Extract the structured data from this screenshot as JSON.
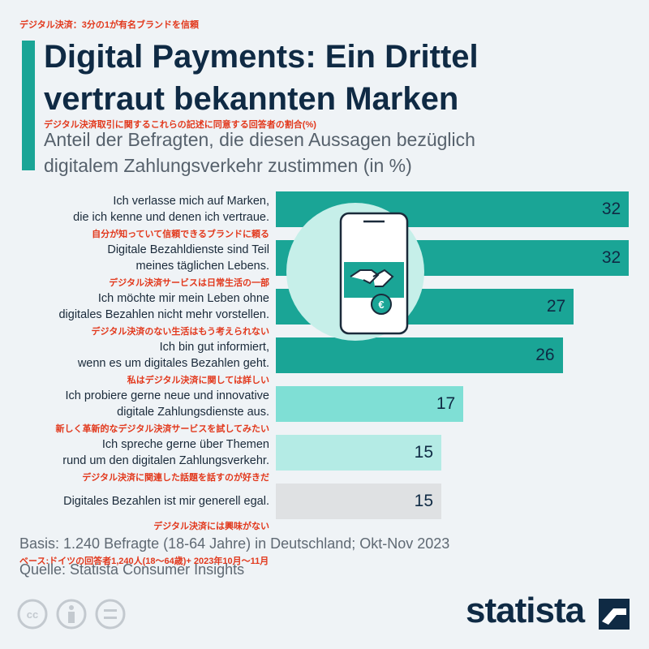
{
  "header_note": "デジタル決済：3分の1が有名ブランドを信頼",
  "chart_data": {
    "type": "bar",
    "orientation": "horizontal",
    "title": "Digital Payments: Ein Drittel\nvertraut bekannten Marken",
    "subtitle_note": "デジタル決済取引に関するこれらの記述に同意する回答者の割合(%)",
    "subtitle": "Anteil der Befragten, die diesen Aussagen bezüglich\ndigitalem Zahlungsverkehr zustimmen (in %)",
    "categories": [
      "Ich verlasse mich auf Marken,\ndie ich kenne und denen ich vertraue.",
      "Digitale Bezahldienste sind Teil\nmeines täglichen Lebens.",
      "Ich möchte mir mein Leben ohne\ndigitales Bezahlen nicht mehr vorstellen.",
      "Ich bin gut informiert,\nwenn es um digitales Bezahlen geht.",
      "Ich probiere gerne neue und innovative\ndigitale Zahlungsdienste aus.",
      "Ich spreche gerne über Themen\nrund um den digitalen Zahlungsverkehr.",
      "Digitales Bezahlen ist mir generell egal."
    ],
    "category_notes": [
      "自分が知っていて信頼できるブランドに頼る",
      "デジタル決済サービスは日常生活の一部",
      "デジタル決済のない生活はもう考えられない",
      "私はデジタル決済に関しては詳しい",
      "新しく革新的なデジタル決済サービスを試してみたい",
      "デジタル決済に関連した話題を話すのが好きだ",
      "デジタル決済には興味がない"
    ],
    "values": [
      32,
      32,
      27,
      26,
      17,
      15,
      15
    ],
    "colors": [
      "#1aa596",
      "#1aa596",
      "#1aa596",
      "#1aa596",
      "#7fdfd5",
      "#b4ebe5",
      "#dfe1e3"
    ]
  },
  "footer": {
    "basis": "Basis: 1.240 Befragte (18-64 Jahre) in Deutschland; Okt-Nov 2023",
    "basis_note": "ベース:ドイツの回答者1,240人(18〜64歳)+ 2023年10月〜11月",
    "source": "Quelle: Statista Consumer Insights",
    "brand": "statista"
  }
}
